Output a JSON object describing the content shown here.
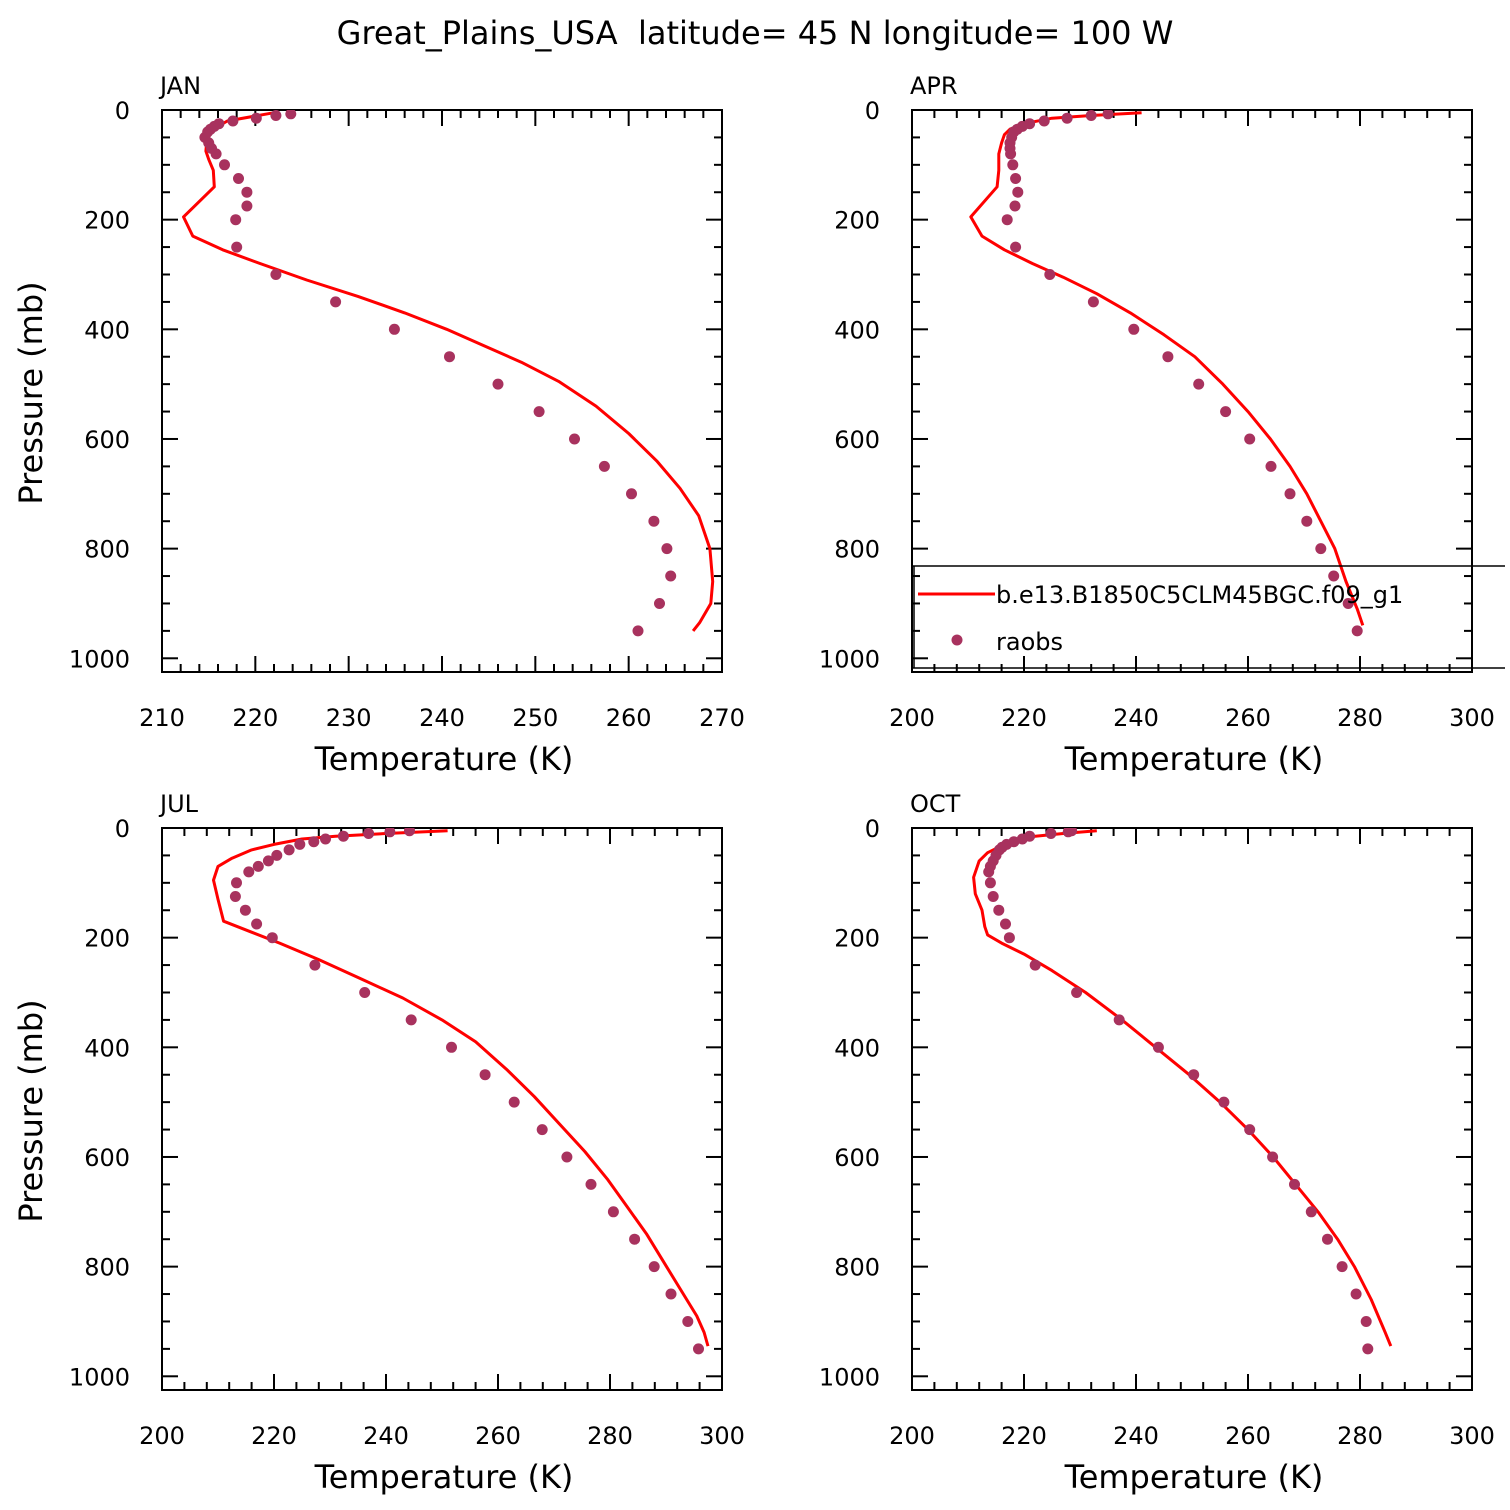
{
  "title": "Great_Plains_USA  latitude= 45 N longitude= 100 W",
  "colors": {
    "model_line": "#ff0000",
    "raobs_marker": "#a8325e",
    "axis": "#000000"
  },
  "legend": {
    "placement": "inside APR panel, lower-right",
    "entries": [
      {
        "label": "b.e13.B1850C5CLM45BGC.f09_g1",
        "style": "line",
        "color": "#ff0000"
      },
      {
        "label": "raobs",
        "style": "marker",
        "color": "#a8325e"
      }
    ]
  },
  "chart_data": [
    {
      "type": "line",
      "panel": "JAN",
      "xlabel": "Temperature (K)",
      "ylabel": "Pressure (mb)",
      "xlim": [
        210,
        270
      ],
      "ylim": [
        1025,
        0
      ],
      "y_inverted": true,
      "xticks": [
        210,
        220,
        230,
        240,
        250,
        260,
        270
      ],
      "yticks": [
        0,
        200,
        400,
        600,
        800,
        1000
      ],
      "series": [
        {
          "kind": "line",
          "color": "#ff0000",
          "x": [
            222,
            217,
            215.5,
            214.8,
            214.7,
            215.0,
            215.5,
            215.6,
            212.3,
            213.3,
            216.5,
            220.5,
            225.5,
            231,
            236,
            240.5,
            244.5,
            248.5,
            252.5,
            256.5,
            260,
            263,
            265.5,
            267.5,
            268.7,
            269.0,
            268.8,
            267.6,
            266.9
          ],
          "y": [
            5,
            20,
            35,
            55,
            75,
            90,
            110,
            140,
            195,
            230,
            255,
            280,
            310,
            340,
            370,
            400,
            430,
            460,
            495,
            540,
            590,
            640,
            690,
            740,
            800,
            860,
            900,
            935,
            950
          ]
        },
        {
          "kind": "scatter",
          "color": "#a8325e",
          "x": [
            223.8,
            222.2,
            220.1,
            217.6,
            216.1,
            215.6,
            215.2,
            214.9,
            214.6,
            215.0,
            215.3,
            215.8,
            216.7,
            218.2,
            219.1,
            219.1,
            217.9,
            218.0,
            222.2,
            228.6,
            234.9,
            240.8,
            246.0,
            250.4,
            254.2,
            257.4,
            260.3,
            262.7,
            264.1,
            264.5,
            263.3,
            261.0
          ],
          "y": [
            7,
            10,
            15,
            20,
            25,
            30,
            35,
            40,
            50,
            60,
            70,
            80,
            100,
            125,
            150,
            175,
            200,
            250,
            300,
            350,
            400,
            450,
            500,
            550,
            600,
            650,
            700,
            750,
            800,
            850,
            900,
            950
          ]
        }
      ]
    },
    {
      "type": "line",
      "panel": "APR",
      "xlabel": "Temperature (K)",
      "ylabel": "",
      "xlim": [
        200,
        300
      ],
      "ylim": [
        1025,
        0
      ],
      "y_inverted": true,
      "xticks": [
        200,
        220,
        240,
        260,
        280,
        300
      ],
      "yticks": [
        0,
        200,
        400,
        600,
        800,
        1000
      ],
      "series": [
        {
          "kind": "line",
          "color": "#ff0000",
          "x": [
            241,
            232,
            225,
            220,
            217.5,
            216.5,
            216,
            215.5,
            215.5,
            215.2,
            210.5,
            212.5,
            216.5,
            221.5,
            227,
            233,
            239,
            245,
            250.5,
            255.5,
            260,
            264,
            267.5,
            270.5,
            273,
            275.5,
            277.5,
            279.5,
            280.5
          ],
          "y": [
            5,
            10,
            15,
            25,
            35,
            45,
            60,
            80,
            110,
            140,
            195,
            230,
            255,
            280,
            305,
            335,
            370,
            410,
            450,
            500,
            550,
            600,
            650,
            700,
            750,
            800,
            860,
            910,
            940
          ]
        },
        {
          "kind": "scatter",
          "color": "#a8325e",
          "x": [
            235.0,
            232.0,
            227.7,
            223.6,
            221.0,
            219.7,
            218.8,
            218.2,
            217.8,
            217.5,
            217.5,
            217.6,
            218.0,
            218.5,
            218.9,
            218.4,
            217.0,
            218.5,
            224.6,
            232.4,
            239.6,
            245.7,
            251.2,
            256.0,
            260.3,
            264.1,
            267.5,
            270.5,
            273.0,
            275.3,
            277.9,
            279.5
          ],
          "y": [
            7,
            10,
            15,
            20,
            25,
            30,
            35,
            40,
            50,
            60,
            70,
            80,
            100,
            125,
            150,
            175,
            200,
            250,
            300,
            350,
            400,
            450,
            500,
            550,
            600,
            650,
            700,
            750,
            800,
            850,
            900,
            950
          ]
        }
      ]
    },
    {
      "type": "line",
      "panel": "JUL",
      "xlabel": "Temperature (K)",
      "ylabel": "Pressure (mb)",
      "xlim": [
        200,
        300
      ],
      "ylim": [
        1025,
        0
      ],
      "y_inverted": true,
      "xticks": [
        200,
        220,
        240,
        260,
        280,
        300
      ],
      "yticks": [
        0,
        200,
        400,
        600,
        800,
        1000
      ],
      "series": [
        {
          "kind": "line",
          "color": "#ff0000",
          "x": [
            251,
            240,
            231,
            225,
            220,
            216,
            212.5,
            210,
            209.2,
            210,
            211,
            216,
            221,
            228,
            235.5,
            243,
            250,
            256,
            261.5,
            266.5,
            271,
            275.5,
            279.5,
            283,
            286.5,
            289.5,
            292.5,
            295.5,
            296.8,
            297.5
          ],
          "y": [
            5,
            10,
            15,
            20,
            30,
            40,
            55,
            70,
            95,
            130,
            170,
            190,
            210,
            240,
            275,
            310,
            350,
            390,
            440,
            490,
            540,
            590,
            640,
            690,
            740,
            790,
            840,
            890,
            920,
            945
          ]
        },
        {
          "kind": "scatter",
          "color": "#a8325e",
          "x": [
            244.2,
            240.7,
            236.9,
            232.4,
            229.2,
            227.1,
            224.6,
            222.7,
            220.5,
            219.0,
            217.2,
            215.5,
            213.3,
            213.1,
            214.9,
            216.9,
            219.7,
            227.3,
            236.2,
            244.5,
            251.7,
            257.7,
            262.9,
            267.9,
            272.3,
            276.6,
            280.6,
            284.4,
            287.9,
            290.9,
            293.9,
            295.8
          ],
          "y": [
            5,
            7,
            10,
            15,
            20,
            25,
            30,
            40,
            50,
            60,
            70,
            80,
            100,
            125,
            150,
            175,
            200,
            250,
            300,
            350,
            400,
            450,
            500,
            550,
            600,
            650,
            700,
            750,
            800,
            850,
            900,
            950
          ]
        }
      ]
    },
    {
      "type": "line",
      "panel": "OCT",
      "xlabel": "Temperature (K)",
      "ylabel": "",
      "xlim": [
        200,
        300
      ],
      "ylim": [
        1025,
        0
      ],
      "y_inverted": true,
      "xticks": [
        200,
        220,
        240,
        260,
        280,
        300
      ],
      "yticks": [
        0,
        200,
        400,
        600,
        800,
        1000
      ],
      "series": [
        {
          "kind": "line",
          "color": "#ff0000",
          "x": [
            233,
            227,
            222,
            218,
            215.5,
            213.5,
            212,
            211,
            211.3,
            212.5,
            213,
            213.5,
            216,
            220,
            225,
            231,
            237.5,
            243.5,
            249.5,
            255,
            260,
            264.5,
            268.5,
            272.5,
            276,
            279,
            282,
            284.5,
            285.5
          ],
          "y": [
            5,
            10,
            15,
            25,
            35,
            45,
            60,
            90,
            120,
            150,
            180,
            195,
            210,
            230,
            260,
            300,
            350,
            400,
            450,
            500,
            550,
            600,
            650,
            700,
            750,
            800,
            860,
            920,
            945
          ]
        },
        {
          "kind": "scatter",
          "color": "#a8325e",
          "x": [
            228.5,
            227.9,
            224.8,
            221.0,
            219.7,
            218.2,
            216.9,
            216.1,
            215.6,
            215.0,
            214.5,
            214.0,
            213.7,
            214.0,
            214.5,
            215.5,
            216.7,
            217.4,
            222.0,
            229.4,
            237.0,
            244.0,
            250.3,
            255.7,
            260.3,
            264.4,
            268.3,
            271.3,
            274.2,
            276.8,
            279.3,
            281.1,
            281.4
          ],
          "y": [
            5,
            7,
            10,
            15,
            20,
            25,
            30,
            35,
            40,
            50,
            60,
            70,
            80,
            100,
            125,
            150,
            175,
            200,
            250,
            300,
            350,
            400,
            450,
            500,
            550,
            600,
            650,
            700,
            750,
            800,
            850,
            900,
            950
          ]
        }
      ]
    }
  ]
}
